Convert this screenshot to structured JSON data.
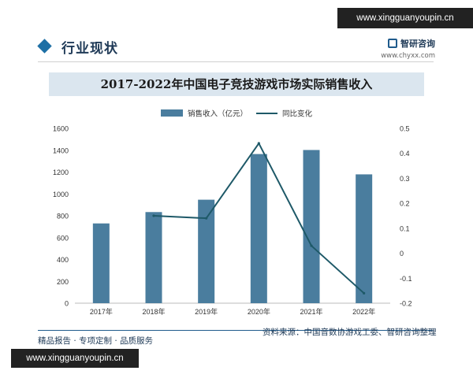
{
  "watermark": {
    "top": "www.xingguanyoupin.cn",
    "bottom": "www.xingguanyoupin.cn"
  },
  "section": {
    "title": "行业现状"
  },
  "brand": {
    "name": "智研咨询",
    "url": "www.chyxx.com"
  },
  "colors": {
    "bar": "#4a7d9e",
    "line": "#1e5968",
    "title_bg": "#dbe6ef",
    "accent": "#1d6fa5"
  },
  "chart_data": {
    "type": "bar",
    "title": "2017-2022年中国电子竞技游戏市场实际销售收入",
    "categories": [
      "2017年",
      "2018年",
      "2019年",
      "2020年",
      "2021年",
      "2022年"
    ],
    "series": [
      {
        "name": "销售收入（亿元）",
        "type": "bar",
        "axis": "left",
        "values": [
          730,
          834,
          947,
          1365,
          1402,
          1179
        ]
      },
      {
        "name": "同比变化",
        "type": "line",
        "axis": "right",
        "values": [
          null,
          0.15,
          0.14,
          0.44,
          0.03,
          -0.16
        ]
      }
    ],
    "ylim": [
      0,
      1600
    ],
    "yticks": [
      "0",
      "200",
      "400",
      "600",
      "800",
      "1000",
      "1200",
      "1400",
      "1600"
    ],
    "ylim_right": [
      -0.2,
      0.5
    ],
    "yticks_right": [
      "-0.2",
      "-0.1",
      "0",
      "0.1",
      "0.2",
      "0.3",
      "0.4",
      "0.5"
    ],
    "legend_position": "top",
    "grid": false
  },
  "footer": {
    "left": "精品报告 · 专项定制 · 品质服务",
    "source": "资料来源：中国音数协游戏工委、智研咨询整理"
  }
}
